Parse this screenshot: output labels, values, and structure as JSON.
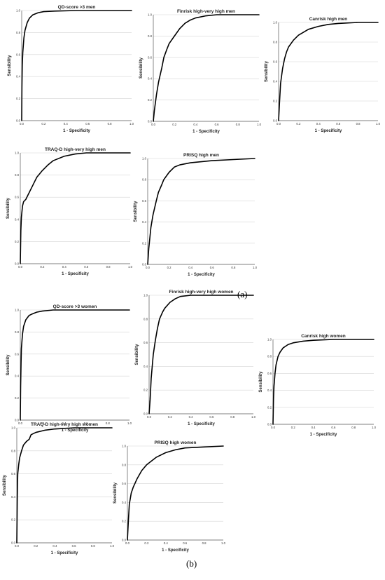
{
  "figure_labels": {
    "a": "(a)",
    "b": "(b)"
  },
  "chart_data": [
    {
      "id": "qd_men",
      "type": "line",
      "title": "QD-score >3 men",
      "xlabel": "1 - Specificity",
      "ylabel": "Sensibility",
      "xlim": [
        0,
        1
      ],
      "ylim": [
        0,
        1
      ],
      "xticks": [
        "0.0",
        "0.2",
        "0.4",
        "0.6",
        "0.8",
        "1.0"
      ],
      "yticks": [
        "0.0",
        "0.2",
        "0.4",
        "0.6",
        "0.8",
        "1.0"
      ],
      "grid": "horizontal",
      "x": [
        0,
        0.002,
        0.005,
        0.01,
        0.02,
        0.03,
        0.05,
        0.07,
        0.1,
        0.15,
        0.2,
        0.3,
        0.5,
        0.7,
        1.0
      ],
      "y": [
        0,
        0.3,
        0.5,
        0.62,
        0.75,
        0.82,
        0.89,
        0.93,
        0.96,
        0.98,
        0.99,
        0.995,
        1.0,
        1.0,
        1.0
      ]
    },
    {
      "id": "finrisk_men",
      "type": "line",
      "title": "Finrisk high-very high men",
      "xlabel": "1 - Specificity",
      "ylabel": "Sensibility",
      "xlim": [
        0,
        1
      ],
      "ylim": [
        0,
        1
      ],
      "xticks": [
        "0.0",
        "0.2",
        "0.4",
        "0.6",
        "0.8",
        "1.0"
      ],
      "yticks": [
        "0.0",
        "0.2",
        "0.4",
        "0.6",
        "0.8",
        "1.0"
      ],
      "grid": "horizontal",
      "x": [
        0,
        0.01,
        0.03,
        0.05,
        0.08,
        0.1,
        0.13,
        0.15,
        0.2,
        0.25,
        0.3,
        0.35,
        0.4,
        0.5,
        0.6,
        0.8,
        1.0
      ],
      "y": [
        0,
        0.1,
        0.25,
        0.37,
        0.5,
        0.6,
        0.68,
        0.73,
        0.8,
        0.87,
        0.92,
        0.95,
        0.97,
        0.99,
        1.0,
        1.0,
        1.0
      ]
    },
    {
      "id": "canrisk_men",
      "type": "line",
      "title": "Canrisk high men",
      "xlabel": "1 - Specificity",
      "ylabel": "Sensibility",
      "xlim": [
        0,
        1
      ],
      "ylim": [
        0,
        1
      ],
      "xticks": [
        "0.0",
        "0.2",
        "0.4",
        "0.6",
        "0.8",
        "1.0"
      ],
      "yticks": [
        "0.0",
        "0.2",
        "0.4",
        "0.6",
        "0.8",
        "1.0"
      ],
      "grid": "horizontal",
      "x": [
        0,
        0.01,
        0.02,
        0.04,
        0.06,
        0.08,
        0.1,
        0.15,
        0.2,
        0.3,
        0.4,
        0.5,
        0.6,
        0.8,
        1.0
      ],
      "y": [
        0,
        0.2,
        0.38,
        0.53,
        0.63,
        0.7,
        0.75,
        0.82,
        0.87,
        0.93,
        0.96,
        0.98,
        0.99,
        1.0,
        1.0
      ]
    },
    {
      "id": "traqd_men",
      "type": "line",
      "title": "TRAQ-D high-very high men",
      "xlabel": "1 - Specificity",
      "ylabel": "Sensibility",
      "xlim": [
        0,
        1
      ],
      "ylim": [
        0,
        1
      ],
      "xticks": [
        "0.0",
        "0.2",
        "0.4",
        "0.6",
        "0.8",
        "1.0"
      ],
      "yticks": [
        "0.0",
        "0.2",
        "0.4",
        "0.6",
        "0.8",
        "1.0"
      ],
      "grid": "horizontal",
      "x": [
        0,
        0.005,
        0.01,
        0.02,
        0.03,
        0.05,
        0.07,
        0.1,
        0.13,
        0.15,
        0.2,
        0.25,
        0.3,
        0.4,
        0.5,
        0.6,
        0.8,
        1.0
      ],
      "y": [
        0,
        0.3,
        0.42,
        0.52,
        0.56,
        0.58,
        0.62,
        0.68,
        0.74,
        0.78,
        0.84,
        0.89,
        0.93,
        0.97,
        0.99,
        1.0,
        1.0,
        1.0
      ]
    },
    {
      "id": "prisq_men",
      "type": "line",
      "title": "PRISQ high men",
      "xlabel": "1 - Specificity",
      "ylabel": "Sensibility",
      "xlim": [
        0,
        1
      ],
      "ylim": [
        0,
        1
      ],
      "xticks": [
        "0.0",
        "0.2",
        "0.4",
        "0.6",
        "0.8",
        "1.0"
      ],
      "yticks": [
        "0.0",
        "0.2",
        "0.4",
        "0.6",
        "0.8",
        "1.0"
      ],
      "grid": "horizontal",
      "x": [
        0,
        0.01,
        0.03,
        0.05,
        0.08,
        0.1,
        0.13,
        0.15,
        0.2,
        0.25,
        0.3,
        0.4,
        0.5,
        0.6,
        0.8,
        1.0
      ],
      "y": [
        0,
        0.15,
        0.35,
        0.47,
        0.6,
        0.68,
        0.75,
        0.8,
        0.87,
        0.92,
        0.94,
        0.96,
        0.97,
        0.98,
        0.99,
        1.0
      ]
    },
    {
      "id": "qd_women",
      "type": "line",
      "title": "QD-score >3 women",
      "xlabel": "1 - Specificity",
      "ylabel": "Sensibility",
      "xlim": [
        0,
        1
      ],
      "ylim": [
        0,
        1
      ],
      "xticks": [
        "0.0",
        "0.2",
        "0.4",
        "0.6",
        "0.8",
        "1.0"
      ],
      "yticks": [
        "0.0",
        "0.2",
        "0.4",
        "0.6",
        "0.8",
        "1.0"
      ],
      "grid": "horizontal",
      "x": [
        0,
        0.003,
        0.007,
        0.01,
        0.02,
        0.03,
        0.05,
        0.08,
        0.1,
        0.15,
        0.2,
        0.3,
        0.5,
        1.0
      ],
      "y": [
        0,
        0.3,
        0.52,
        0.65,
        0.78,
        0.85,
        0.91,
        0.95,
        0.96,
        0.98,
        0.99,
        1.0,
        1.0,
        1.0
      ]
    },
    {
      "id": "finrisk_women",
      "type": "line",
      "title": "Finrisk high-very high women",
      "xlabel": "1 - Specificity",
      "ylabel": "Sensibility",
      "xlim": [
        0,
        1
      ],
      "ylim": [
        0,
        1
      ],
      "xticks": [
        "0.0",
        "0.2",
        "0.4",
        "0.6",
        "0.8",
        "1.0"
      ],
      "yticks": [
        "0.0",
        "0.2",
        "0.4",
        "0.6",
        "0.8",
        "1.0"
      ],
      "grid": "horizontal",
      "x": [
        0,
        0.01,
        0.02,
        0.04,
        0.06,
        0.08,
        0.1,
        0.13,
        0.15,
        0.2,
        0.25,
        0.3,
        0.4,
        0.5,
        1.0
      ],
      "y": [
        0,
        0.12,
        0.3,
        0.5,
        0.62,
        0.72,
        0.8,
        0.86,
        0.89,
        0.94,
        0.97,
        0.99,
        1.0,
        1.0,
        1.0
      ]
    },
    {
      "id": "canrisk_women",
      "type": "line",
      "title": "Canrisk high women",
      "xlabel": "1 - Specificity",
      "ylabel": "Sensibility",
      "xlim": [
        0,
        1
      ],
      "ylim": [
        0,
        1
      ],
      "xticks": [
        "0.0",
        "0.2",
        "0.4",
        "0.6",
        "0.8",
        "1.0"
      ],
      "yticks": [
        "0.0",
        "0.2",
        "0.4",
        "0.6",
        "0.8",
        "1.0"
      ],
      "grid": "horizontal",
      "x": [
        0,
        0.005,
        0.01,
        0.02,
        0.03,
        0.05,
        0.07,
        0.1,
        0.15,
        0.2,
        0.3,
        0.4,
        0.6,
        1.0
      ],
      "y": [
        0,
        0.3,
        0.45,
        0.6,
        0.7,
        0.8,
        0.85,
        0.9,
        0.94,
        0.96,
        0.98,
        0.99,
        1.0,
        1.0
      ]
    },
    {
      "id": "traqd_women",
      "type": "line",
      "title": "TRAQ-D high-very high women",
      "xlabel": "1 - Specificity",
      "ylabel": "Sensibility",
      "xlim": [
        0,
        1
      ],
      "ylim": [
        0,
        1
      ],
      "xticks": [
        "0.0",
        "0.2",
        "0.4",
        "0.6",
        "0.8",
        "1.0"
      ],
      "yticks": [
        "0.0",
        "0.2",
        "0.4",
        "0.6",
        "0.8",
        "1.0"
      ],
      "grid": "horizontal",
      "x": [
        0,
        0.005,
        0.01,
        0.02,
        0.03,
        0.05,
        0.07,
        0.1,
        0.13,
        0.15,
        0.2,
        0.3,
        0.4,
        0.6,
        1.0
      ],
      "y": [
        0,
        0.4,
        0.6,
        0.68,
        0.74,
        0.8,
        0.85,
        0.88,
        0.9,
        0.94,
        0.96,
        0.98,
        0.99,
        1.0,
        1.0
      ]
    },
    {
      "id": "prisq_women",
      "type": "line",
      "title": "PRISQ high women",
      "xlabel": "1 - Specificity",
      "ylabel": "Sensibility",
      "xlim": [
        0,
        1
      ],
      "ylim": [
        0,
        1
      ],
      "xticks": [
        "0.0",
        "0.2",
        "0.4",
        "0.6",
        "0.8",
        "1.0"
      ],
      "yticks": [
        "0.0",
        "0.2",
        "0.4",
        "0.6",
        "0.8",
        "1.0"
      ],
      "grid": "horizontal",
      "x": [
        0,
        0.01,
        0.02,
        0.04,
        0.06,
        0.1,
        0.15,
        0.2,
        0.3,
        0.4,
        0.5,
        0.6,
        0.8,
        1.0
      ],
      "y": [
        0,
        0.2,
        0.38,
        0.5,
        0.56,
        0.65,
        0.74,
        0.8,
        0.88,
        0.93,
        0.96,
        0.98,
        0.99,
        1.0
      ]
    }
  ]
}
